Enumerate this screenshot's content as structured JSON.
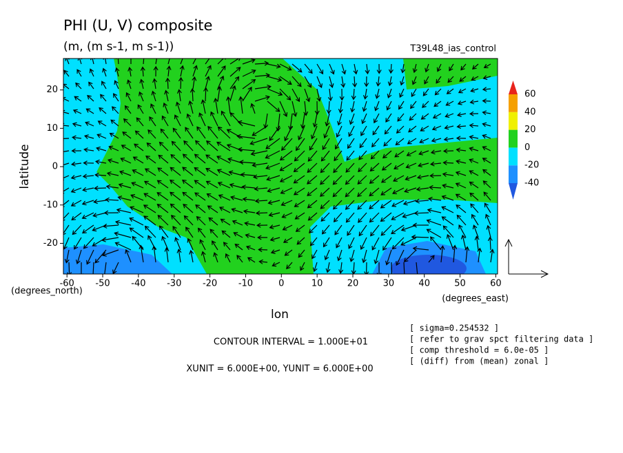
{
  "chart_data": {
    "type": "contour-vector-map",
    "title": "PHI (U, V) composite",
    "subtitle": "(m, (m s-1, m s-1))",
    "run_label": "T39L48_ias_control",
    "xlabel": "lon",
    "ylabel": "latitude",
    "x_unit_label": "(degrees_east)",
    "y_unit_label": "(degrees_north)",
    "xlim": [
      -61,
      60.5
    ],
    "ylim": [
      -28,
      28.2
    ],
    "xticks": [
      -60,
      -50,
      -40,
      -30,
      -20,
      -10,
      0,
      10,
      20,
      30,
      40,
      50,
      60
    ],
    "yticks": [
      -20,
      -10,
      0,
      10,
      20
    ],
    "colorbar": {
      "levels": [
        -40,
        -20,
        0,
        20,
        40,
        60
      ],
      "colors": [
        "#2058e0",
        "#1e90ff",
        "#00e0ff",
        "#22d11e",
        "#f0f000",
        "#f5a000",
        "#e8241c"
      ]
    },
    "contour_note": "CONTOUR INTERVAL = 1.000E+01",
    "unit_note": "XUNIT = 6.000E+00, YUNIT = 6.000E+00",
    "notes": [
      "[ sigma=0.254532 ]",
      "[ refer to grav spct filtering data ]",
      "[ comp threshold = 6.0e-05 ]",
      "[ (diff) from (mean) zonal ]"
    ]
  }
}
